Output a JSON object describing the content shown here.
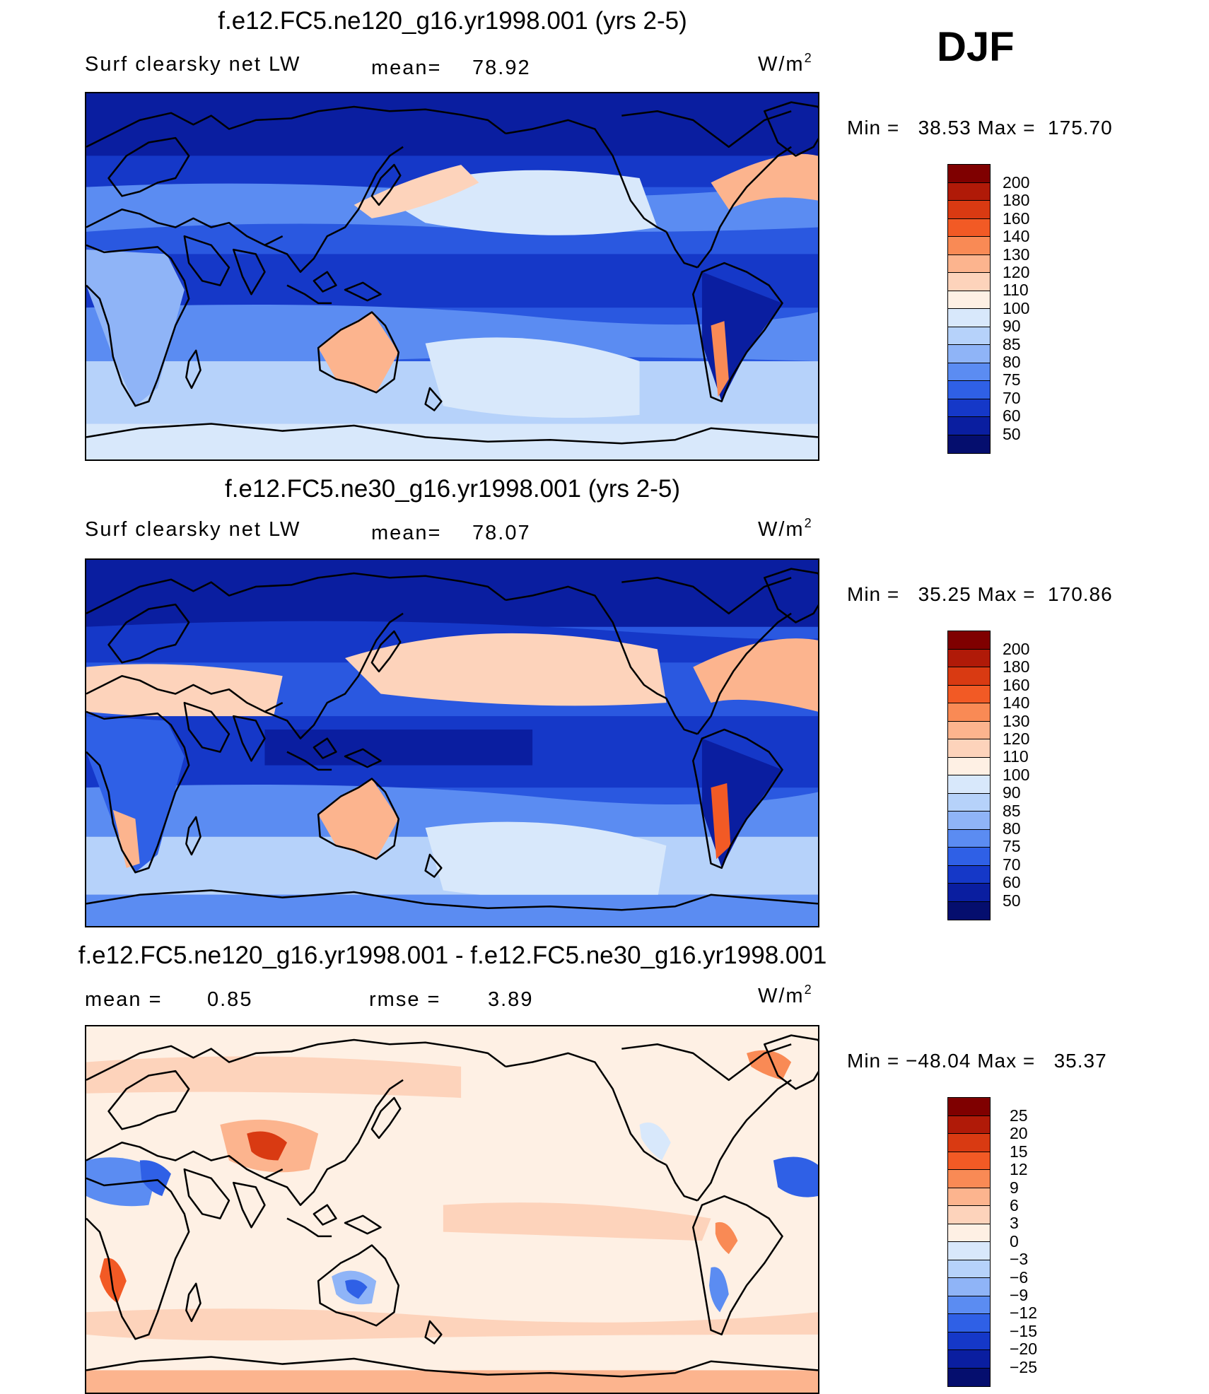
{
  "season": "DJF",
  "panels": [
    {
      "title": "f.e12.FC5.ne120_g16.yr1998.001 (yrs 2-5)",
      "variable": "Surf clearsky net LW",
      "stat1_label": "mean=",
      "stat1_value": "78.92",
      "units_base": "W/m",
      "units_sup": "2",
      "min_label": "Min =",
      "min_value": "38.53",
      "max_label": "Max =",
      "max_value": "175.70",
      "colorbar": {
        "levels": [
          "200",
          "180",
          "160",
          "140",
          "130",
          "120",
          "110",
          "100",
          "90",
          "85",
          "80",
          "75",
          "70",
          "60",
          "50"
        ],
        "colors": [
          "#7f0000",
          "#b01a08",
          "#d93a12",
          "#f25a25",
          "#f98a55",
          "#fcb48e",
          "#fdd3bb",
          "#fef0e4",
          "#d8e8fb",
          "#b6d2fa",
          "#8fb4f7",
          "#5b8cf2",
          "#2f60e6",
          "#1538c8",
          "#0a1ea0",
          "#050e6e"
        ]
      }
    },
    {
      "title": "f.e12.FC5.ne30_g16.yr1998.001 (yrs 2-5)",
      "variable": "Surf clearsky net LW",
      "stat1_label": "mean=",
      "stat1_value": "78.07",
      "units_base": "W/m",
      "units_sup": "2",
      "min_label": "Min =",
      "min_value": "35.25",
      "max_label": "Max =",
      "max_value": "170.86",
      "colorbar": {
        "levels": [
          "200",
          "180",
          "160",
          "140",
          "130",
          "120",
          "110",
          "100",
          "90",
          "85",
          "80",
          "75",
          "70",
          "60",
          "50"
        ],
        "colors": [
          "#7f0000",
          "#b01a08",
          "#d93a12",
          "#f25a25",
          "#f98a55",
          "#fcb48e",
          "#fdd3bb",
          "#fef0e4",
          "#d8e8fb",
          "#b6d2fa",
          "#8fb4f7",
          "#5b8cf2",
          "#2f60e6",
          "#1538c8",
          "#0a1ea0",
          "#050e6e"
        ]
      }
    },
    {
      "title": "f.e12.FC5.ne120_g16.yr1998.001 - f.e12.FC5.ne30_g16.yr1998.001",
      "stat1_label": "mean =",
      "stat1_value": "0.85",
      "stat2_label": "rmse =",
      "stat2_value": "3.89",
      "units_base": "W/m",
      "units_sup": "2",
      "min_label": "Min =",
      "min_value": "−48.04",
      "max_label": "Max =",
      "max_value": "35.37",
      "colorbar": {
        "levels": [
          "25",
          "20",
          "15",
          "12",
          "9",
          "6",
          "3",
          "0",
          "−3",
          "−6",
          "−9",
          "−12",
          "−15",
          "−20",
          "−25"
        ],
        "colors": [
          "#7f0000",
          "#b01a08",
          "#d93a12",
          "#f25a25",
          "#f98a55",
          "#fcb48e",
          "#fdd3bb",
          "#fef0e4",
          "#d8e8fb",
          "#b6d2fa",
          "#8fb4f7",
          "#5b8cf2",
          "#2f60e6",
          "#1538c8",
          "#0a1ea0",
          "#050e6e"
        ]
      }
    }
  ]
}
